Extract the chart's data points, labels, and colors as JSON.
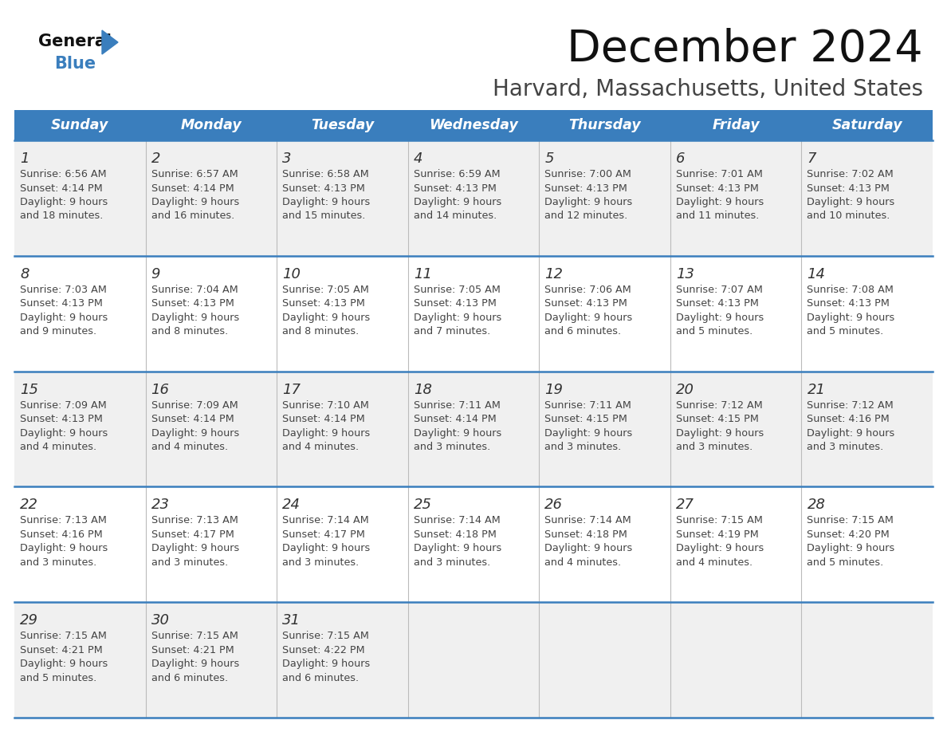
{
  "title": "December 2024",
  "subtitle": "Harvard, Massachusetts, United States",
  "days_of_week": [
    "Sunday",
    "Monday",
    "Tuesday",
    "Wednesday",
    "Thursday",
    "Friday",
    "Saturday"
  ],
  "header_bg": "#3A7EBD",
  "header_text_color": "#FFFFFF",
  "row_bg_even": "#F0F0F0",
  "row_bg_odd": "#FFFFFF",
  "cell_text_color": "#444444",
  "border_color": "#3A7EBD",
  "grid_line_color": "#AAAAAA",
  "calendar_data": [
    [
      {
        "day": 1,
        "sunrise": "6:56 AM",
        "sunset": "4:14 PM",
        "daylight": "9 hours and 18 minutes."
      },
      {
        "day": 2,
        "sunrise": "6:57 AM",
        "sunset": "4:14 PM",
        "daylight": "9 hours and 16 minutes."
      },
      {
        "day": 3,
        "sunrise": "6:58 AM",
        "sunset": "4:13 PM",
        "daylight": "9 hours and 15 minutes."
      },
      {
        "day": 4,
        "sunrise": "6:59 AM",
        "sunset": "4:13 PM",
        "daylight": "9 hours and 14 minutes."
      },
      {
        "day": 5,
        "sunrise": "7:00 AM",
        "sunset": "4:13 PM",
        "daylight": "9 hours and 12 minutes."
      },
      {
        "day": 6,
        "sunrise": "7:01 AM",
        "sunset": "4:13 PM",
        "daylight": "9 hours and 11 minutes."
      },
      {
        "day": 7,
        "sunrise": "7:02 AM",
        "sunset": "4:13 PM",
        "daylight": "9 hours and 10 minutes."
      }
    ],
    [
      {
        "day": 8,
        "sunrise": "7:03 AM",
        "sunset": "4:13 PM",
        "daylight": "9 hours and 9 minutes."
      },
      {
        "day": 9,
        "sunrise": "7:04 AM",
        "sunset": "4:13 PM",
        "daylight": "9 hours and 8 minutes."
      },
      {
        "day": 10,
        "sunrise": "7:05 AM",
        "sunset": "4:13 PM",
        "daylight": "9 hours and 8 minutes."
      },
      {
        "day": 11,
        "sunrise": "7:05 AM",
        "sunset": "4:13 PM",
        "daylight": "9 hours and 7 minutes."
      },
      {
        "day": 12,
        "sunrise": "7:06 AM",
        "sunset": "4:13 PM",
        "daylight": "9 hours and 6 minutes."
      },
      {
        "day": 13,
        "sunrise": "7:07 AM",
        "sunset": "4:13 PM",
        "daylight": "9 hours and 5 minutes."
      },
      {
        "day": 14,
        "sunrise": "7:08 AM",
        "sunset": "4:13 PM",
        "daylight": "9 hours and 5 minutes."
      }
    ],
    [
      {
        "day": 15,
        "sunrise": "7:09 AM",
        "sunset": "4:13 PM",
        "daylight": "9 hours and 4 minutes."
      },
      {
        "day": 16,
        "sunrise": "7:09 AM",
        "sunset": "4:14 PM",
        "daylight": "9 hours and 4 minutes."
      },
      {
        "day": 17,
        "sunrise": "7:10 AM",
        "sunset": "4:14 PM",
        "daylight": "9 hours and 4 minutes."
      },
      {
        "day": 18,
        "sunrise": "7:11 AM",
        "sunset": "4:14 PM",
        "daylight": "9 hours and 3 minutes."
      },
      {
        "day": 19,
        "sunrise": "7:11 AM",
        "sunset": "4:15 PM",
        "daylight": "9 hours and 3 minutes."
      },
      {
        "day": 20,
        "sunrise": "7:12 AM",
        "sunset": "4:15 PM",
        "daylight": "9 hours and 3 minutes."
      },
      {
        "day": 21,
        "sunrise": "7:12 AM",
        "sunset": "4:16 PM",
        "daylight": "9 hours and 3 minutes."
      }
    ],
    [
      {
        "day": 22,
        "sunrise": "7:13 AM",
        "sunset": "4:16 PM",
        "daylight": "9 hours and 3 minutes."
      },
      {
        "day": 23,
        "sunrise": "7:13 AM",
        "sunset": "4:17 PM",
        "daylight": "9 hours and 3 minutes."
      },
      {
        "day": 24,
        "sunrise": "7:14 AM",
        "sunset": "4:17 PM",
        "daylight": "9 hours and 3 minutes."
      },
      {
        "day": 25,
        "sunrise": "7:14 AM",
        "sunset": "4:18 PM",
        "daylight": "9 hours and 3 minutes."
      },
      {
        "day": 26,
        "sunrise": "7:14 AM",
        "sunset": "4:18 PM",
        "daylight": "9 hours and 4 minutes."
      },
      {
        "day": 27,
        "sunrise": "7:15 AM",
        "sunset": "4:19 PM",
        "daylight": "9 hours and 4 minutes."
      },
      {
        "day": 28,
        "sunrise": "7:15 AM",
        "sunset": "4:20 PM",
        "daylight": "9 hours and 5 minutes."
      }
    ],
    [
      {
        "day": 29,
        "sunrise": "7:15 AM",
        "sunset": "4:21 PM",
        "daylight": "9 hours and 5 minutes."
      },
      {
        "day": 30,
        "sunrise": "7:15 AM",
        "sunset": "4:21 PM",
        "daylight": "9 hours and 6 minutes."
      },
      {
        "day": 31,
        "sunrise": "7:15 AM",
        "sunset": "4:22 PM",
        "daylight": "9 hours and 6 minutes."
      },
      null,
      null,
      null,
      null
    ]
  ]
}
